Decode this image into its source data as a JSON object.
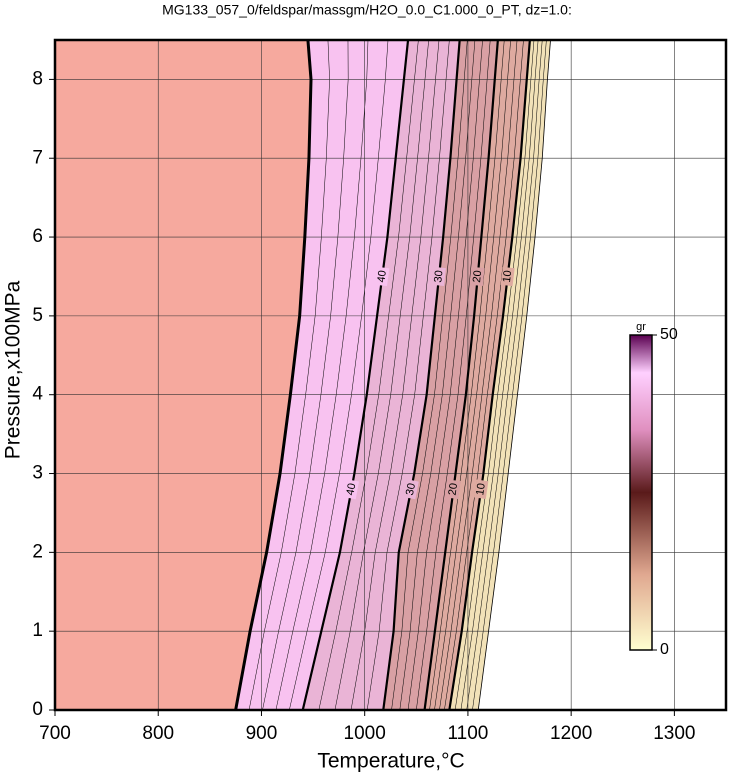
{
  "chart_data": {
    "type": "contour",
    "title": "MG133_057_0/feldspar/massgm/H2O_0.0_C1.000_0_PT, dz=1.0:",
    "x_label": "Temperature,°C",
    "y_label": "Pressure,x100MPa",
    "xlim": [
      700,
      1350
    ],
    "ylim": [
      0,
      8.5
    ],
    "xticks": [
      700,
      800,
      900,
      1000,
      1100,
      1200,
      1300
    ],
    "yticks": [
      0,
      1,
      2,
      3,
      4,
      5,
      6,
      7,
      8
    ],
    "grid": true,
    "pressures": [
      0,
      1,
      2,
      3,
      4,
      5,
      6,
      7,
      8,
      8.5
    ],
    "boundary": {
      "x": [
        875,
        889,
        905,
        918,
        928,
        937,
        942,
        946,
        948,
        945
      ],
      "color": "#f6a99e"
    },
    "contours": [
      {
        "level": 40,
        "x": [
          940,
          958,
          976,
          990,
          1002,
          1012,
          1022,
          1030,
          1038,
          1042
        ],
        "color": "#f8c2f0"
      },
      {
        "level": 30,
        "x": [
          1018,
          1028,
          1033,
          1048,
          1060,
          1068,
          1076,
          1083,
          1089,
          1092
        ],
        "color": "#eab4d6"
      },
      {
        "level": 20,
        "x": [
          1058,
          1068,
          1078,
          1088,
          1098,
          1106,
          1113,
          1120,
          1126,
          1129
        ],
        "color": "#d9a0a4"
      },
      {
        "level": 10,
        "x": [
          1082,
          1094,
          1104,
          1115,
          1124,
          1134,
          1143,
          1151,
          1157,
          1160
        ],
        "color": "#deaaa0"
      },
      {
        "level": 0,
        "x": [
          1110,
          1120,
          1130,
          1139,
          1148,
          1157,
          1165,
          1172,
          1177,
          1180
        ],
        "color": "#f2e2b8"
      }
    ],
    "colorbar": {
      "label": "gr",
      "lim": [
        0,
        50
      ],
      "ticks": [
        0,
        50
      ],
      "stops": [
        {
          "value": 0,
          "color": "#ffffd0"
        },
        {
          "value": 12,
          "color": "#e0a890"
        },
        {
          "value": 25,
          "color": "#5a1a1a"
        },
        {
          "value": 35,
          "color": "#e090c0"
        },
        {
          "value": 44,
          "color": "#ffd0ff"
        },
        {
          "value": 50,
          "color": "#5a0050"
        }
      ]
    }
  }
}
